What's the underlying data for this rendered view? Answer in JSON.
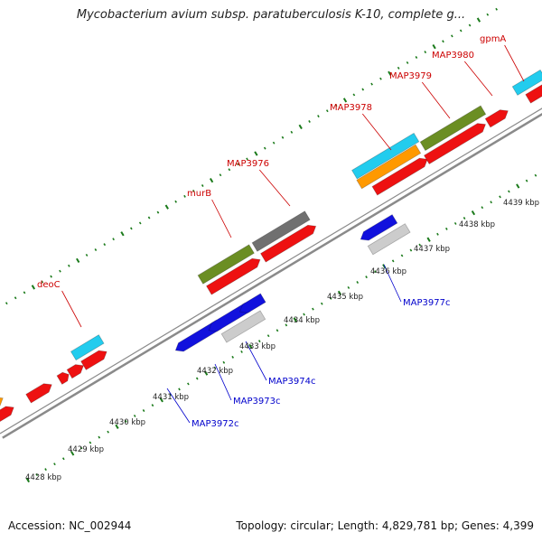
{
  "title": "Mycobacterium avium subsp. paratuberculosis K-10, complete g...",
  "footer": {
    "accession": "Accession: NC_002944",
    "stats": "Topology: circular; Length: 4,829,781 bp; Genes: 4,399"
  },
  "colors": {
    "forward_label": "#cc0000",
    "reverse_label": "#0000cc",
    "backbone": "#8a8a8a",
    "tick": "#1a7a1a",
    "cds": "#ee1111",
    "blue": "#1111dd",
    "green": "#6b8e23",
    "cyan": "#22ccee",
    "orange": "#ff9900",
    "gray": "#707070",
    "lightgray": "#cccccc"
  },
  "scale_labels": [
    "4428 kbp",
    "4429 kbp",
    "4430 kbp",
    "4431 kbp",
    "4432 kbp",
    "4433 kbp",
    "4434 kbp",
    "4435 kbp",
    "4436 kbp",
    "4437 kbp",
    "4438 kbp",
    "4439 kbp"
  ],
  "forward_gene_labels": [
    "deoC",
    "murB",
    "MAP3976",
    "MAP3978",
    "MAP3979",
    "MAP3980",
    "gpmA"
  ],
  "reverse_gene_labels": [
    "MAP3972c",
    "MAP3973c",
    "MAP3974c",
    "MAP3977c"
  ]
}
